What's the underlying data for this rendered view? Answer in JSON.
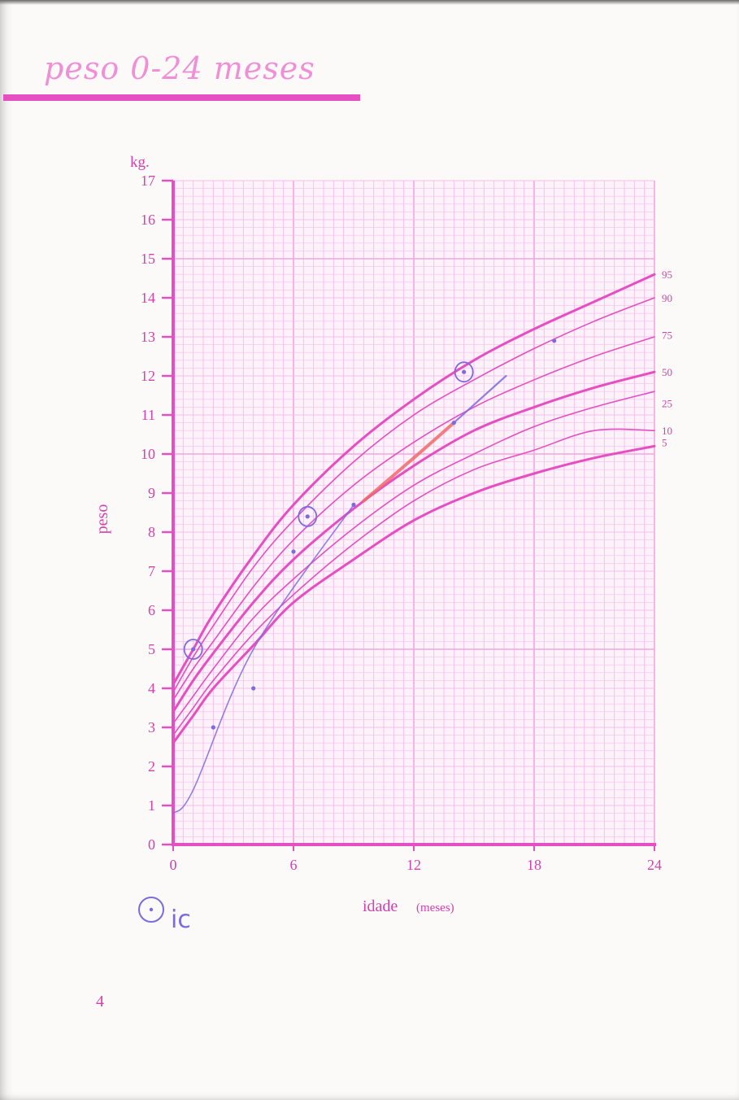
{
  "page": {
    "title": "peso 0-24 meses",
    "page_number": "4",
    "handwritten_note": "ic"
  },
  "colors": {
    "chart_pink": "#e54fc2",
    "grid_pink": "#f7bde9",
    "grid_pink_major": "#f3a6e0",
    "label_pink": "#d53fb0",
    "ink_blue": "#7b6be0",
    "ink_red": "#ef6a6a"
  },
  "chart_data": {
    "type": "line",
    "title": "",
    "xlabel": "idade",
    "xlabel_unit": "(meses)",
    "ylabel": "peso",
    "yunit": "kg.",
    "xlim": [
      0,
      24
    ],
    "ylim": [
      0,
      17
    ],
    "x_ticks": [
      "0",
      "6",
      "12",
      "18",
      "24"
    ],
    "y_ticks": [
      "0",
      "1",
      "2",
      "3",
      "4",
      "5",
      "6",
      "7",
      "8",
      "9",
      "10",
      "11",
      "12",
      "13",
      "14",
      "15",
      "16",
      "17"
    ],
    "grid": true,
    "percentile_labels": [
      "95",
      "90",
      "75",
      "50",
      "25",
      "10",
      "5"
    ],
    "series": [
      {
        "name": "95",
        "bold": true,
        "x": [
          0,
          1,
          2,
          4,
          6,
          9,
          12,
          15,
          18,
          21,
          24
        ],
        "values": [
          4.1,
          5.0,
          5.9,
          7.4,
          8.7,
          10.2,
          11.4,
          12.4,
          13.2,
          13.9,
          14.6
        ]
      },
      {
        "name": "90",
        "bold": false,
        "x": [
          0,
          1,
          2,
          4,
          6,
          9,
          12,
          15,
          18,
          21,
          24
        ],
        "values": [
          3.9,
          4.8,
          5.6,
          7.1,
          8.3,
          9.8,
          11.0,
          11.9,
          12.7,
          13.4,
          14.0
        ]
      },
      {
        "name": "75",
        "bold": false,
        "x": [
          0,
          1,
          2,
          4,
          6,
          9,
          12,
          15,
          18,
          21,
          24
        ],
        "values": [
          3.7,
          4.5,
          5.2,
          6.6,
          7.8,
          9.2,
          10.3,
          11.2,
          11.9,
          12.5,
          13.0
        ]
      },
      {
        "name": "50",
        "bold": true,
        "x": [
          0,
          1,
          2,
          4,
          6,
          9,
          12,
          15,
          18,
          21,
          24
        ],
        "values": [
          3.4,
          4.2,
          4.9,
          6.2,
          7.3,
          8.6,
          9.7,
          10.6,
          11.2,
          11.7,
          12.1
        ]
      },
      {
        "name": "25",
        "bold": false,
        "x": [
          0,
          1,
          2,
          4,
          6,
          9,
          12,
          15,
          18,
          21,
          24
        ],
        "values": [
          3.1,
          3.8,
          4.5,
          5.8,
          6.8,
          8.1,
          9.2,
          10.0,
          10.7,
          11.2,
          11.6
        ]
      },
      {
        "name": "10",
        "bold": false,
        "x": [
          0,
          1,
          2,
          4,
          6,
          9,
          12,
          15,
          18,
          21,
          24
        ],
        "values": [
          2.8,
          3.5,
          4.2,
          5.4,
          6.4,
          7.7,
          8.8,
          9.6,
          10.1,
          10.6,
          10.6
        ]
      },
      {
        "name": "5",
        "bold": true,
        "x": [
          0,
          1,
          2,
          4,
          6,
          9,
          12,
          15,
          18,
          21,
          24
        ],
        "values": [
          2.6,
          3.3,
          4.0,
          5.1,
          6.2,
          7.3,
          8.3,
          9.0,
          9.5,
          9.9,
          10.2
        ]
      }
    ],
    "child_weights": {
      "blue_line": {
        "x": [
          0,
          1,
          4,
          9
        ],
        "values": [
          0.8,
          1.4,
          5.0,
          8.7
        ]
      },
      "red_line": {
        "x": [
          9.5,
          12,
          14
        ],
        "values": [
          8.8,
          9.9,
          10.8
        ]
      },
      "blue_line_2": {
        "x": [
          14,
          16.6
        ],
        "values": [
          10.8,
          12.0
        ]
      },
      "points": {
        "x": [
          1,
          2,
          4,
          6,
          6.7,
          9,
          14,
          14.5,
          19
        ],
        "values": [
          5.0,
          3.0,
          4.0,
          7.5,
          8.4,
          8.7,
          10.8,
          12.1,
          12.9
        ]
      },
      "circled_points": {
        "x": [
          1,
          6.7,
          14.5
        ],
        "values": [
          5.0,
          8.4,
          12.1
        ]
      }
    }
  }
}
